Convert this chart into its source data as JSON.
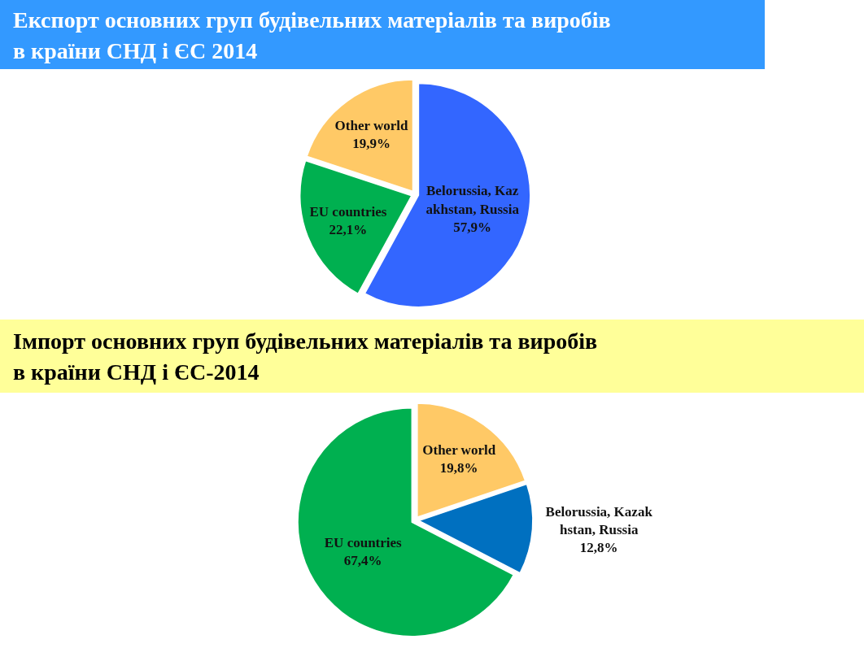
{
  "chart_data": [
    {
      "type": "pie",
      "title": "Експорт основних груп будівельних матеріалів та виробів\nв країни СНД і ЄС 2014",
      "categories": [
        "Belorussia, Kaz\nakhstan, Russia",
        "EU countries",
        "Other world"
      ],
      "values": [
        57.9,
        22.1,
        19.9
      ],
      "value_labels": [
        "57,9%",
        "22,1%",
        "19,9%"
      ],
      "colors": [
        "#3366ff",
        "#00b050",
        "#ffc966"
      ]
    },
    {
      "type": "pie",
      "title": "Імпорт основних груп будівельних матеріалів та виробів\nв країни СНД і ЄС-2014",
      "categories": [
        "Other world",
        "Belorussia, Kazak\nhstan, Russia",
        "EU countries"
      ],
      "values": [
        19.8,
        12.8,
        67.4
      ],
      "value_labels": [
        "19,8%",
        "12,8%",
        "67,4%"
      ],
      "colors": [
        "#ffc966",
        "#0070c0",
        "#00b050"
      ]
    }
  ]
}
